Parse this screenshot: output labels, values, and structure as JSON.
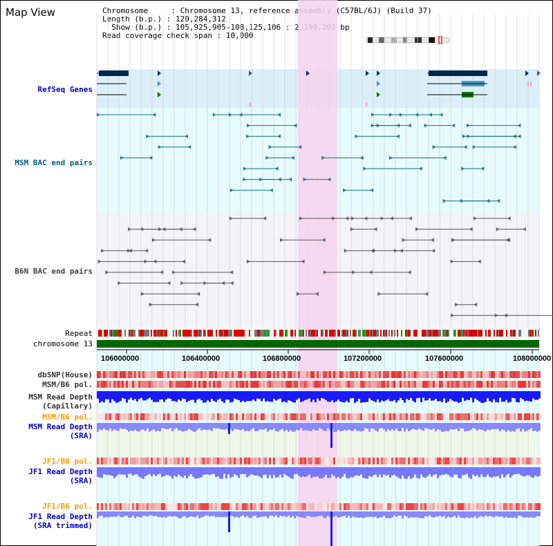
{
  "page": {
    "title": "Map View"
  },
  "info": {
    "chromosome_key": "Chromosome",
    "chromosome_value": "Chromosome 13, reference assembly (C57BL/6J) (Build 37)",
    "length_key": "Length (b.p.)",
    "length_value": "120,284,312",
    "show_key": "Show (b.p.)",
    "show_value": "105,925,905-108,125,106 : 2,199,202 bp",
    "coverage_key": "Read coverage check span",
    "coverage_value": "10,000"
  },
  "tracks": {
    "refseq": "RefSeq Genes",
    "msm_bac": "MSM BAC end pairs",
    "b6n_bac": "B6N BAC end pairs",
    "repeat": "Repeat",
    "chrom": "chromosome 13",
    "dbsnp": "dbSNP(House)",
    "msm_b6_pol": "MSM/B6 pol.",
    "msm_depth_cap_1": "MSM Read Depth",
    "msm_depth_cap_2": "(Capillary)",
    "msm_b6_pol_2": "MSM/B6 pol.",
    "msm_depth_sra_1": "MSM Read Depth",
    "msm_depth_sra_2": "(SRA)",
    "jf1_pol": "JF1/B6 pol.",
    "jf1_depth_1": "JF1 Read Depth",
    "jf1_depth_2": "(SRA)",
    "jf1_pol_2": "JF1/B6 pol.",
    "jf1_trim_1": "JF1 Read Depth",
    "jf1_trim_2": "(SRA trimmed)"
  },
  "axis": {
    "ticks": [
      "106000000",
      "106400000",
      "106800000",
      "107200000",
      "107600000",
      "108000000"
    ]
  },
  "colors": {
    "refseq_label": "#0000cc",
    "msm_label": "#006080",
    "b6n_label": "#404040",
    "orange_label": "#ff9900",
    "blue_label": "#0000cc",
    "gray_label": "#333333",
    "highlight": "#f6d2ef",
    "chromosome_bar": "#006600",
    "depth_blue": "#1a1aff",
    "depth_sra": "#8888ff"
  }
}
